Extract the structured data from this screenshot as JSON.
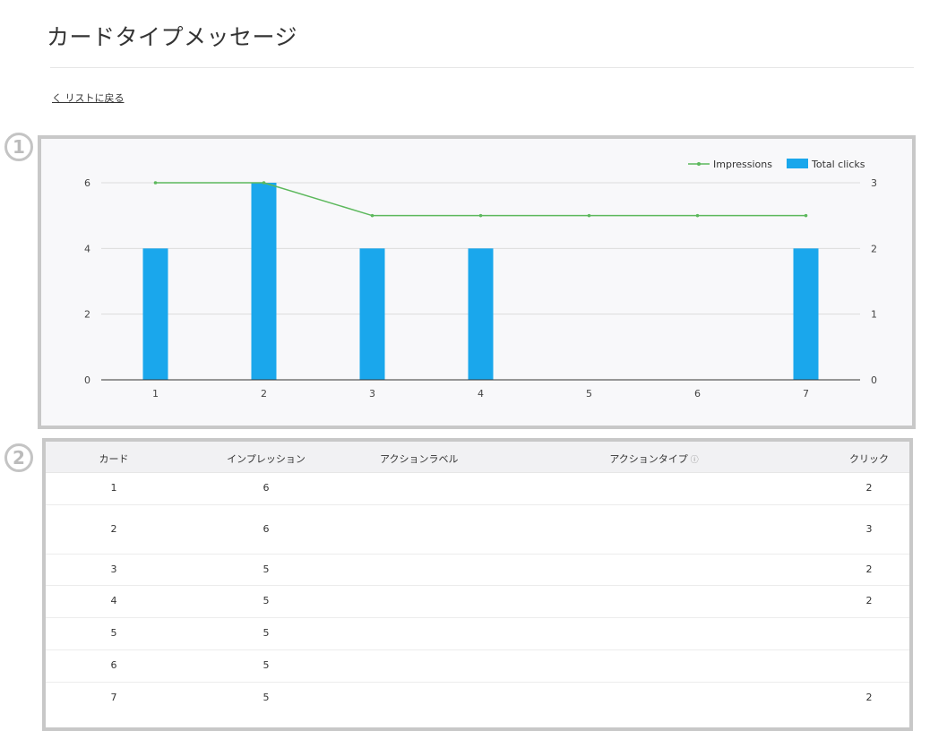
{
  "page": {
    "title": "カードタイプメッセージ",
    "back_link": "く リストに戻る",
    "badges": [
      "1",
      "2"
    ]
  },
  "chart_data": {
    "type": "bar+line",
    "categories": [
      "1",
      "2",
      "3",
      "4",
      "5",
      "6",
      "7"
    ],
    "series": [
      {
        "name": "Impressions",
        "type": "line",
        "axis": "left",
        "color": "#5cb85c",
        "values": [
          6,
          6,
          5,
          5,
          5,
          5,
          5
        ]
      },
      {
        "name": "Total clicks",
        "type": "bar",
        "axis": "right",
        "color": "#1aa7ec",
        "values": [
          2,
          3,
          2,
          2,
          0,
          0,
          2
        ]
      }
    ],
    "left_axis": {
      "range": [
        0,
        6
      ],
      "ticks": [
        "0",
        "2",
        "4",
        "6"
      ]
    },
    "right_axis": {
      "range": [
        0,
        3
      ],
      "ticks": [
        "0",
        "1",
        "2",
        "3"
      ]
    },
    "grid": true,
    "legend_position": "top-right"
  },
  "table": {
    "headers": [
      "カード",
      "インプレッション",
      "アクションラベル",
      "アクションタイプ",
      "クリック"
    ],
    "help_icon": "question-circle-icon",
    "rows": [
      [
        "1",
        "6",
        "",
        "",
        "2"
      ],
      [
        "2",
        "6",
        "",
        "",
        "3"
      ],
      [
        "3",
        "5",
        "",
        "",
        "2"
      ],
      [
        "4",
        "5",
        "",
        "",
        "2"
      ],
      [
        "5",
        "5",
        "",
        "",
        ""
      ],
      [
        "6",
        "5",
        "",
        "",
        ""
      ],
      [
        "7",
        "5",
        "",
        "",
        "2"
      ]
    ]
  }
}
